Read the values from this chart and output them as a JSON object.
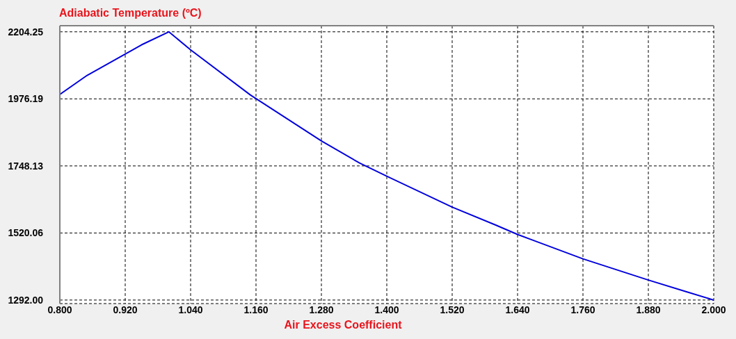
{
  "chart_data": {
    "type": "line",
    "ylabel": "Adiabatic Temperature (ºC)",
    "xlabel": "Air Excess Coefficient",
    "x": [
      0.8,
      0.85,
      0.95,
      1.0,
      1.04,
      1.15,
      1.28,
      1.35,
      1.4,
      1.52,
      1.6,
      1.64,
      1.76,
      1.88,
      1.95,
      2.0
    ],
    "values": [
      1991,
      2056,
      2160,
      2204.25,
      2143,
      1989,
      1833,
      1758,
      1713,
      1608,
      1547,
      1515,
      1432,
      1360,
      1320,
      1292
    ],
    "color": "#0000dd",
    "marker": "none",
    "line_style": "solid",
    "grid": true,
    "xlim": [
      0.8,
      2.0
    ],
    "ylim": [
      1280,
      2225
    ],
    "xticks": [
      {
        "value": 0.8,
        "label": "0.800"
      },
      {
        "value": 0.92,
        "label": "0.920"
      },
      {
        "value": 1.04,
        "label": "1.040"
      },
      {
        "value": 1.16,
        "label": "1.160"
      },
      {
        "value": 1.28,
        "label": "1.280"
      },
      {
        "value": 1.4,
        "label": "1.400"
      },
      {
        "value": 1.52,
        "label": "1.520"
      },
      {
        "value": 1.64,
        "label": "1.640"
      },
      {
        "value": 1.76,
        "label": "1.760"
      },
      {
        "value": 1.88,
        "label": "1.880"
      },
      {
        "value": 2.0,
        "label": "2.000"
      }
    ],
    "yticks": [
      {
        "value": 1292,
        "label": "1292.00"
      },
      1520.06,
      1748.13,
      1976.19,
      2204.25
    ]
  }
}
